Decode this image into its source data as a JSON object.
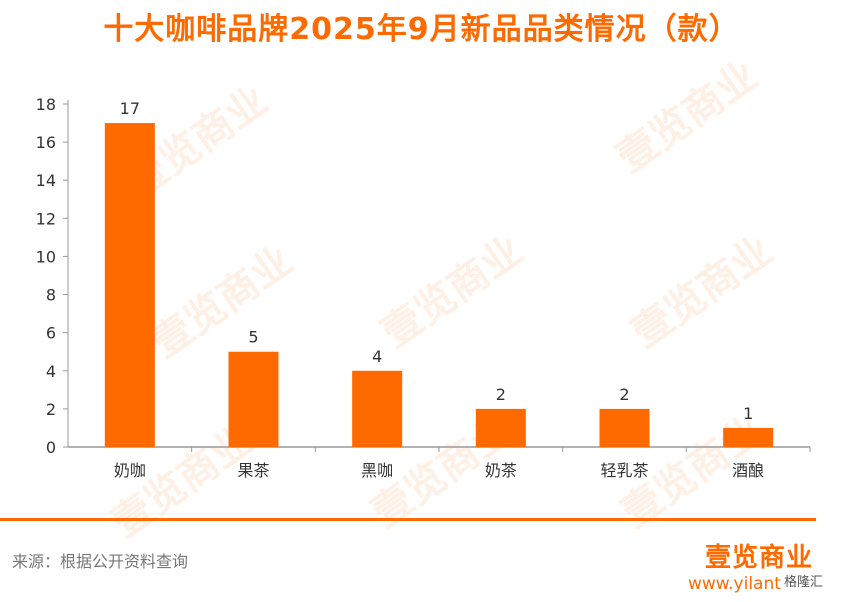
{
  "title": "十大咖啡品牌2025年9月新品品类情况（款）",
  "source": "来源：根据公开资料查询",
  "brand": {
    "logo_text": "壹览商业",
    "url": "www.yilant",
    "overlay_text": "格隆汇"
  },
  "watermark_text": "壹览商业",
  "colors": {
    "accent": "#FF6A00",
    "axis": "#999999",
    "text": "#333333"
  },
  "chart_data": {
    "type": "bar",
    "categories": [
      "奶咖",
      "果茶",
      "黑咖",
      "奶茶",
      "轻乳茶",
      "酒酿"
    ],
    "values": [
      17,
      5,
      4,
      2,
      2,
      1
    ],
    "ylim": [
      0,
      18
    ],
    "yticks": [
      0,
      2,
      4,
      6,
      8,
      10,
      12,
      14,
      16,
      18
    ],
    "grid": false,
    "data_labels": true
  }
}
